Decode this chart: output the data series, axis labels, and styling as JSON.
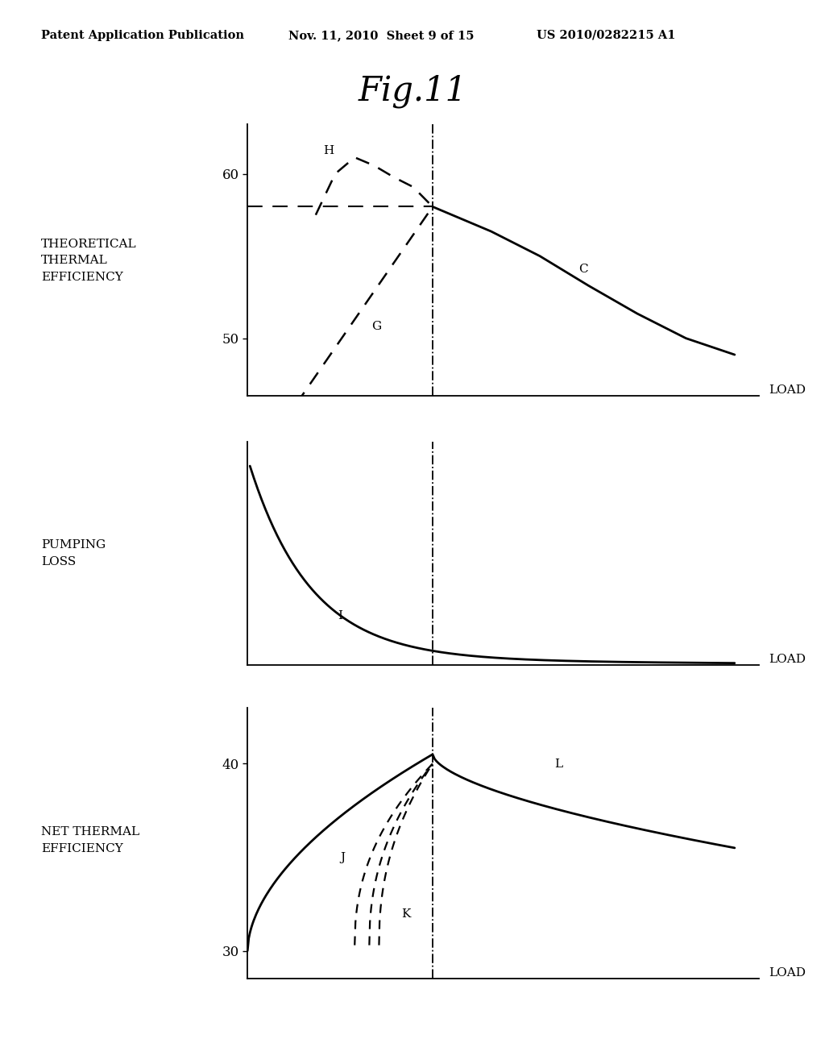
{
  "title": "Fig.11",
  "header_left": "Patent Application Publication",
  "header_mid": "Nov. 11, 2010  Sheet 9 of 15",
  "header_right": "US 2010/0282215 A1",
  "bg_color": "#ffffff",
  "text_color": "#000000",
  "plot1_ylabel": "THEORETICAL\nTHERMAL\nEFFICIENCY",
  "plot1_yticks": [
    50,
    60
  ],
  "plot1_xlabel": "LOAD",
  "plot2_ylabel": "PUMPING\nLOSS",
  "plot2_xlabel": "LOAD",
  "plot3_ylabel": "NET THERMAL\nEFFICIENCY",
  "plot3_yticks": [
    30,
    40
  ],
  "plot3_xlabel": "LOAD",
  "vline_x": 0.38,
  "line_color": "#000000",
  "dashed_color": "#000000"
}
